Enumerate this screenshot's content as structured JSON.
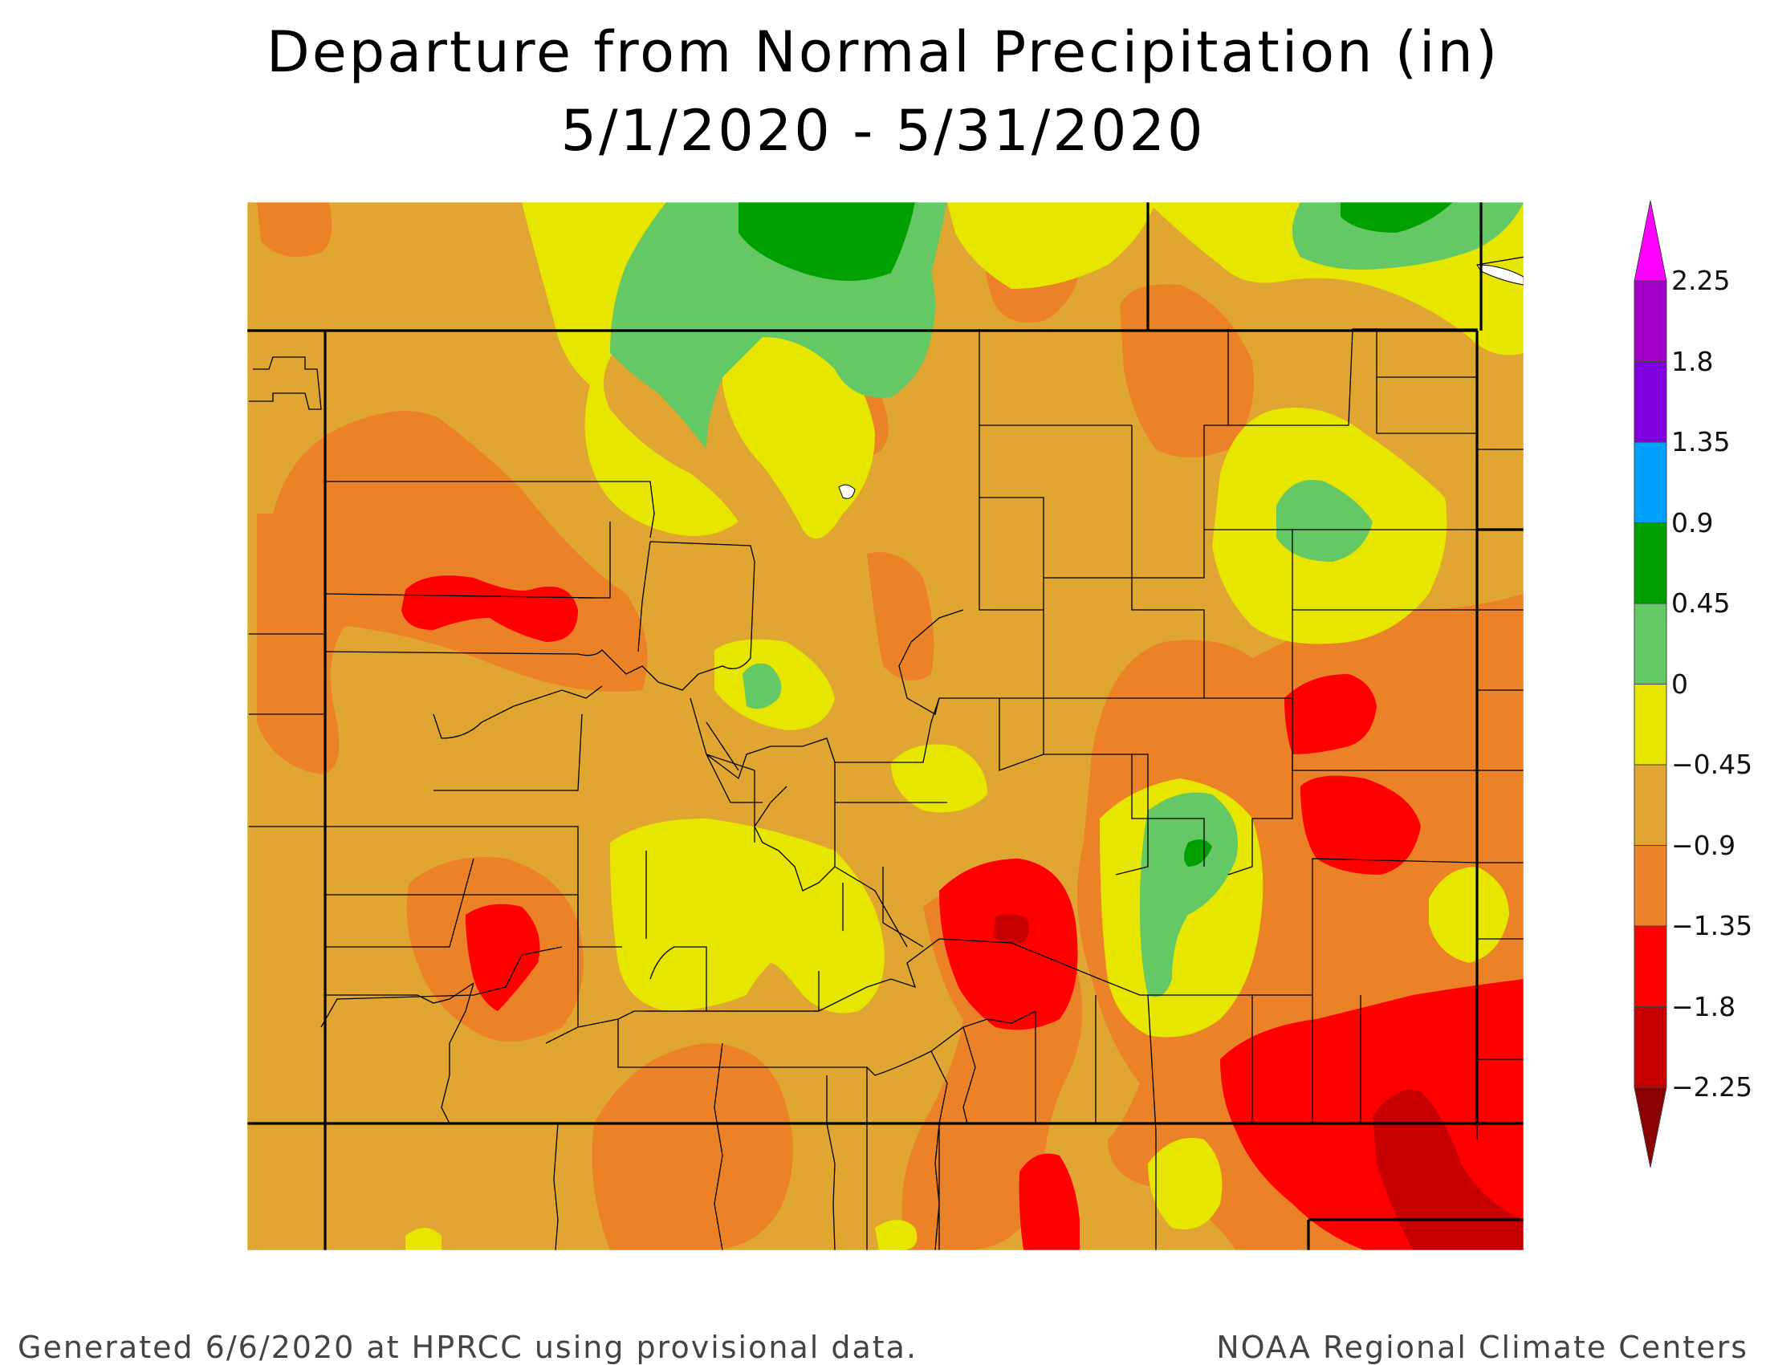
{
  "title": {
    "line1": "Departure from Normal Precipitation (in)",
    "line2": "5/1/2020 - 5/31/2020"
  },
  "footer": {
    "left": "Generated 6/6/2020 at HPRCC using provisional data.",
    "right": "NOAA Regional Climate Centers"
  },
  "legend": {
    "levels": [
      {
        "label": "2.25",
        "color": "#ff00ff"
      },
      {
        "label": "1.8",
        "color": "#a000c8"
      },
      {
        "label": "1.35",
        "color": "#8000e0"
      },
      {
        "label": "0.9",
        "color": "#00a0ff"
      },
      {
        "label": "0.45",
        "color": "#00a000"
      },
      {
        "label": "0",
        "color": "#64c864"
      },
      {
        "label": "−0.45",
        "color": "#e6e600"
      },
      {
        "label": "−0.9",
        "color": "#e1a532"
      },
      {
        "label": "−1.35",
        "color": "#eb8228"
      },
      {
        "label": "−1.8",
        "color": "#ff0000"
      },
      {
        "label": "−2.25",
        "color": "#c80000"
      }
    ],
    "below_color": "#8b0000",
    "above_color": "#ff00ff"
  },
  "map": {
    "base_color": "#e1a532"
  }
}
